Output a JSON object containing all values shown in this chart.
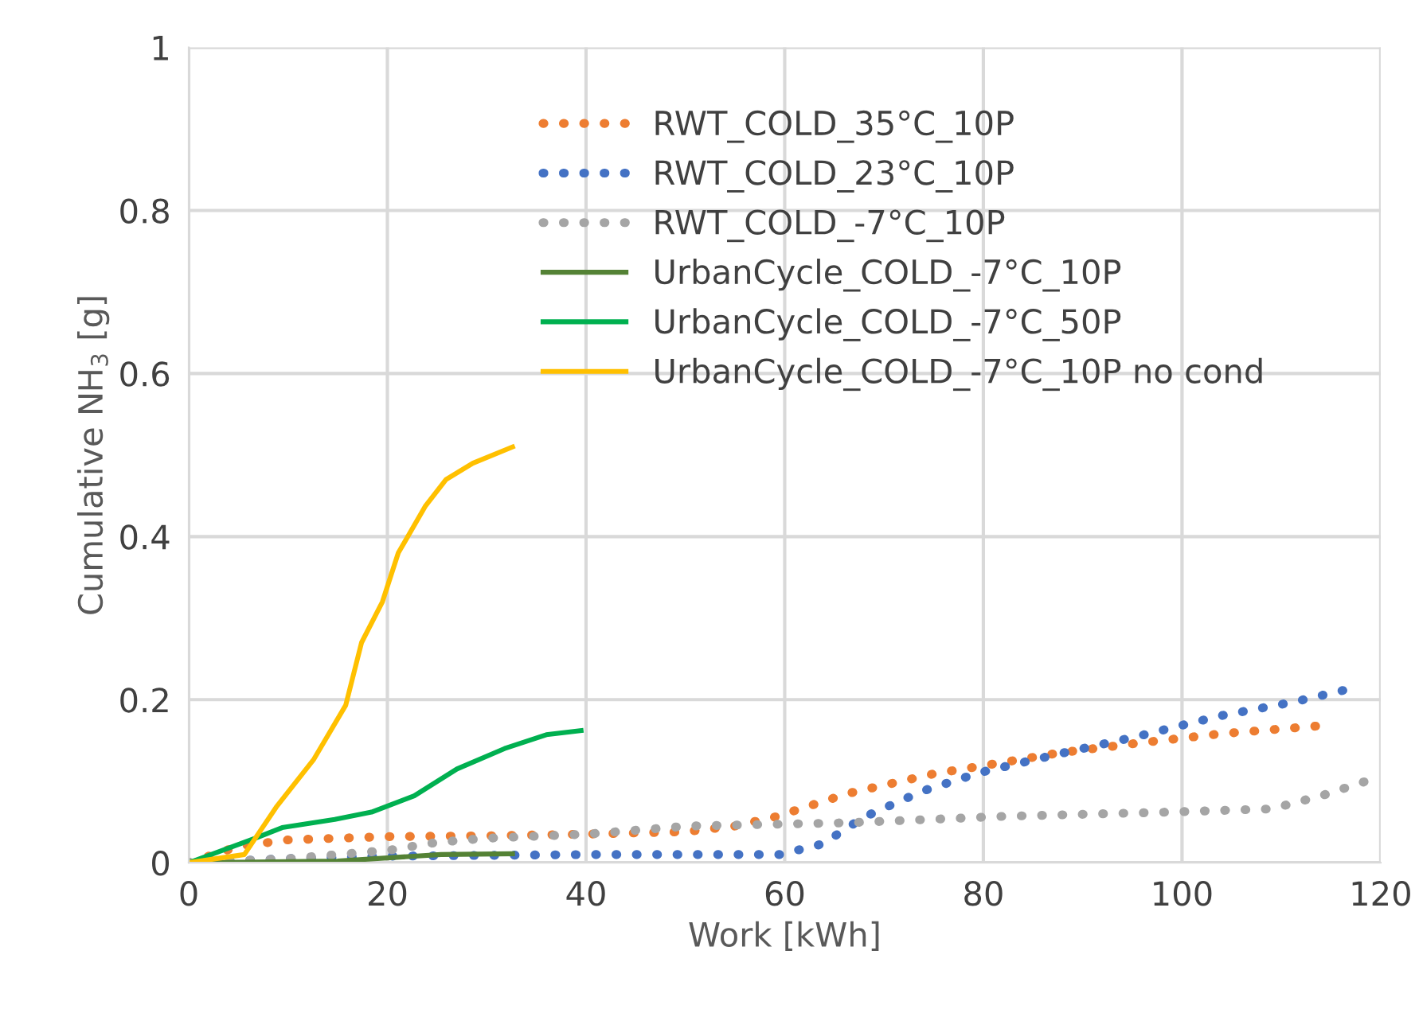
{
  "chart_data": {
    "type": "line",
    "xlabel": "Work [kWh]",
    "ylabel": "Cumulative NH$_{3}$ [g]",
    "xlim": [
      0,
      120
    ],
    "xticks": [
      0,
      20,
      40,
      60,
      80,
      100,
      120
    ],
    "ylim": [
      0,
      1
    ],
    "yticks": [
      0,
      0.2,
      0.4,
      0.6,
      0.8,
      1
    ],
    "grid": true,
    "legend": "top",
    "series": [
      {
        "name": "RWT_COLD_35°C_10P",
        "color": "#ed7d31",
        "line_style": "dotted",
        "x": [
          0,
          5,
          10,
          20,
          30,
          40,
          50,
          55,
          59,
          66.4,
          75,
          82,
          87.8,
          95.8,
          103.8,
          114
        ],
        "values": [
          0,
          0.02,
          0.028,
          0.032,
          0.033,
          0.035,
          0.038,
          0.045,
          0.056,
          0.085,
          0.109,
          0.123,
          0.135,
          0.147,
          0.158,
          0.168
        ]
      },
      {
        "name": "RWT_COLD_23°C_10P",
        "color": "#4472c4",
        "line_style": "dotted",
        "x": [
          0,
          10,
          20,
          30,
          40,
          50,
          59.5,
          63.8,
          68,
          73.9,
          79.8,
          87.8,
          95.2,
          103.8,
          111.2,
          116.8
        ],
        "values": [
          0,
          0.005,
          0.008,
          0.009,
          0.01,
          0.01,
          0.01,
          0.023,
          0.056,
          0.088,
          0.111,
          0.134,
          0.154,
          0.18,
          0.197,
          0.213
        ]
      },
      {
        "name": "RWT_COLD_-7°C_10P",
        "color": "#a5a5a5",
        "line_style": "dotted",
        "x": [
          0,
          10,
          20,
          25,
          30,
          40,
          50.4,
          66.4,
          82.4,
          98.4,
          109,
          114,
          119.8
        ],
        "values": [
          0,
          0.005,
          0.015,
          0.025,
          0.03,
          0.035,
          0.045,
          0.049,
          0.057,
          0.062,
          0.066,
          0.082,
          0.105
        ]
      },
      {
        "name": "UrbanCycle_COLD_-7°C_10P",
        "color": "#548235",
        "line_style": "solid",
        "x": [
          0,
          15,
          25.4,
          32.6
        ],
        "values": [
          0,
          0.002,
          0.01,
          0.011
        ]
      },
      {
        "name": "UrbanCycle_COLD_-7°C_50P",
        "color": "#00b050",
        "line_style": "solid",
        "x": [
          0,
          6.7,
          9.4,
          14.7,
          18.4,
          22.7,
          27,
          31.8,
          36,
          39.5
        ],
        "values": [
          0,
          0.03,
          0.043,
          0.053,
          0.062,
          0.082,
          0.115,
          0.14,
          0.157,
          0.162
        ]
      },
      {
        "name": "UrbanCycle_COLD_-7°C_10P no cond",
        "color": "#ffc000",
        "line_style": "solid",
        "x": [
          0,
          5.6,
          8.8,
          12.6,
          15.8,
          17.4,
          19.5,
          21.1,
          23.8,
          25.9,
          28.6,
          32.6
        ],
        "values": [
          0,
          0.01,
          0.068,
          0.127,
          0.193,
          0.27,
          0.32,
          0.38,
          0.437,
          0.47,
          0.49,
          0.51
        ]
      }
    ]
  }
}
